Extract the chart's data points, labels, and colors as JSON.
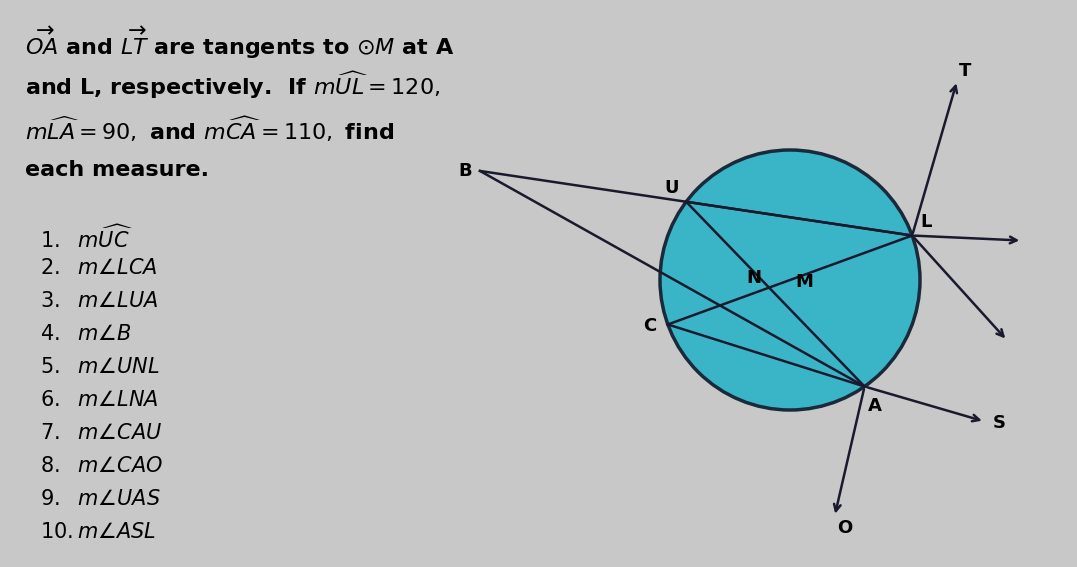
{
  "bg_color": "#c8c8c8",
  "text_color": "#000000",
  "circle_color": "#3ab5c8",
  "circle_edge_color": "#1a2a3a",
  "line_color": "#1a1a2e",
  "font_size_title": 16,
  "font_size_items": 15,
  "title_lines": [
    "$\\overrightarrow{OA}$ and $\\overrightarrow{LT}$ are tangents to $\\odot M$ at A",
    "and L, respectively.  If $m\\widehat{UL} = 120,$",
    "$m\\widehat{LA} = 90,$ and $m\\widehat{CA} = 110,$ find",
    "each measure."
  ],
  "items": [
    "$1.\\ \\ m\\widehat{UC}$",
    "$2.\\ \\ m\\angle LCA$",
    "$3.\\ \\ m\\angle LUA$",
    "$4.\\ \\ m\\angle B$",
    "$5.\\ \\ m\\angle UNL$",
    "$6.\\ \\ m\\angle LNA$",
    "$7.\\ \\ m\\angle CAU$",
    "$8.\\ \\ m\\angle CAO$",
    "$9.\\ \\ m\\angle UAS$",
    "$10.m\\angle ASL$"
  ]
}
